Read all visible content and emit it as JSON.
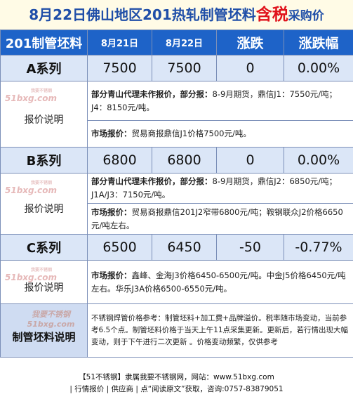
{
  "title": {
    "main": "8月22日佛山地区201热轧制管坯料",
    "highlight": "含税",
    "tail": "采购价"
  },
  "header": {
    "col1": "201制管坯料",
    "col2": "8月21日",
    "col3": "8月22日",
    "col4": "涨跌",
    "col5": "涨跌幅"
  },
  "rows": [
    {
      "name": "A系列",
      "p1": "7500",
      "p2": "7500",
      "chg": "0",
      "pct": "0.00%",
      "note_label": "报价说明",
      "note1_bold": "部分青山代理未作报价，部分报：",
      "note1": "8-9月期货，鼎信J1：7550元/吨；J4：8150元/吨。",
      "note2_bold": "市场报价：",
      "note2": "贸易商报鼎信J1价格7500元/吨。"
    },
    {
      "name": "B系列",
      "p1": "6800",
      "p2": "6800",
      "chg": "0",
      "pct": "0.00%",
      "note_label": "报价说明",
      "note1_bold": "部分青山代理未作报价，部分报：",
      "note1": "8-9月期货，鼎信J2：6850元/吨；J1A/J3：7150元/吨。",
      "note2_bold": "市场报价：",
      "note2": "贸易商报鼎信201J2窄带6800元/吨；鞍钢联众J2价格6650元/吨左右。"
    },
    {
      "name": "C系列",
      "p1": "6500",
      "p2": "6450",
      "chg": "-50",
      "pct": "-0.77%",
      "note_label": "报价说明",
      "note1_bold": "市场报价：",
      "note1": "鑫峰、金海J3价格6450-6500元/吨。中金J5价格6450元/吨左右。华乐J3A价格6500-6550元/吨。"
    }
  ],
  "watermark": {
    "site": "51bxg.com",
    "small": "我要不锈钢"
  },
  "footer_label": "制管坯料说明",
  "footer_note": "不锈钢焊管价格参考：制管坯料+加工费+品牌溢价。税率随市场变动，当前参考6.5个点。制管坯料价格于当天上午11点采集更新。更新后，若行情出现大幅变动，则于下午进行二次更新 。价格变动频繁，仅供参考",
  "bottom": {
    "line1": "【51不锈钢】隶属我要不锈钢网，网站：www.51bxg.com",
    "line2": "| 行情报价 | 供应商 | 点“阅读原文”获取，咨询:0757-83879051"
  }
}
